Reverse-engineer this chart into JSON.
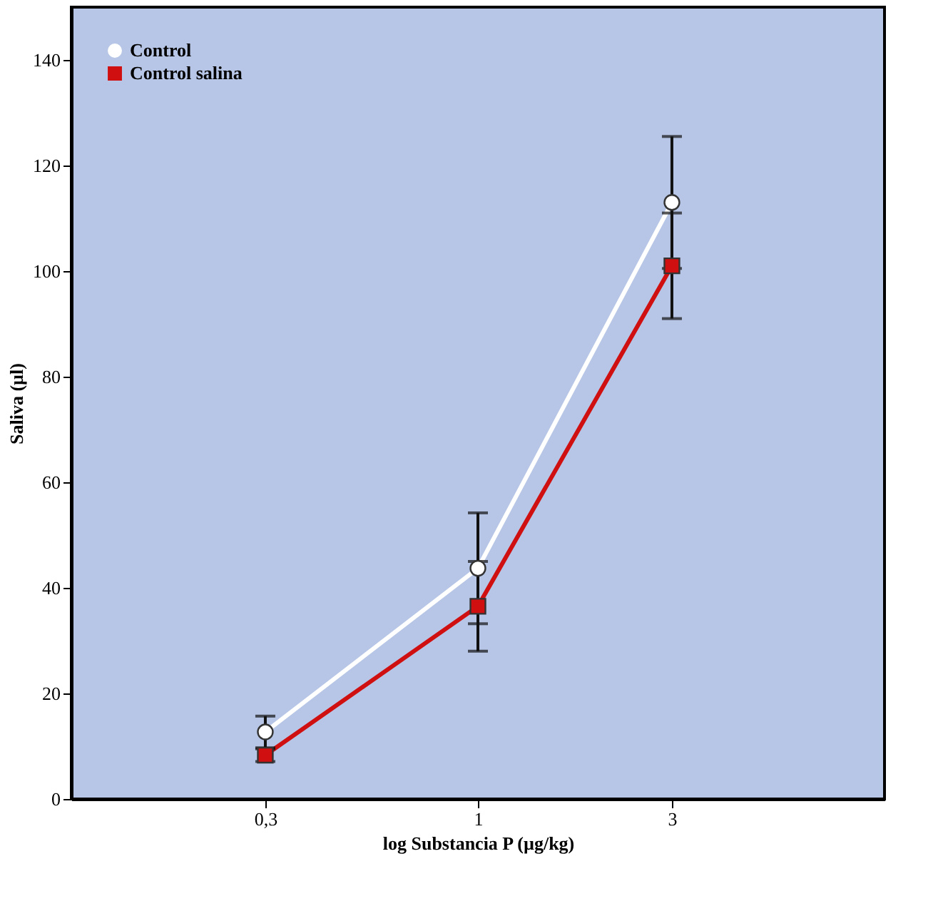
{
  "chart_data": {
    "type": "line",
    "xlabel": "log Substancia P (µg/kg)",
    "ylabel": "Saliva (µl)",
    "log": "x",
    "xlim": [
      0.1,
      10
    ],
    "xticks": [
      {
        "value": 0.3,
        "label": "0,3"
      },
      1,
      3
    ],
    "ylim": [
      0,
      150
    ],
    "yticks": [
      0,
      20,
      40,
      60,
      80,
      100,
      120,
      140
    ],
    "x": [
      0.3,
      1,
      3
    ],
    "series": [
      {
        "name": "Control",
        "color": "#ffffff",
        "marker": "circle",
        "values": [
          12.7,
          43.7,
          113
        ],
        "errors": [
          3,
          10.5,
          12.5
        ]
      },
      {
        "name": "Control salina",
        "color": "#d01010",
        "marker": "square",
        "values": [
          8.3,
          36.5,
          101
        ],
        "errors": [
          1.2,
          8.5,
          10
        ]
      }
    ],
    "legend": "top left",
    "grid": false
  }
}
